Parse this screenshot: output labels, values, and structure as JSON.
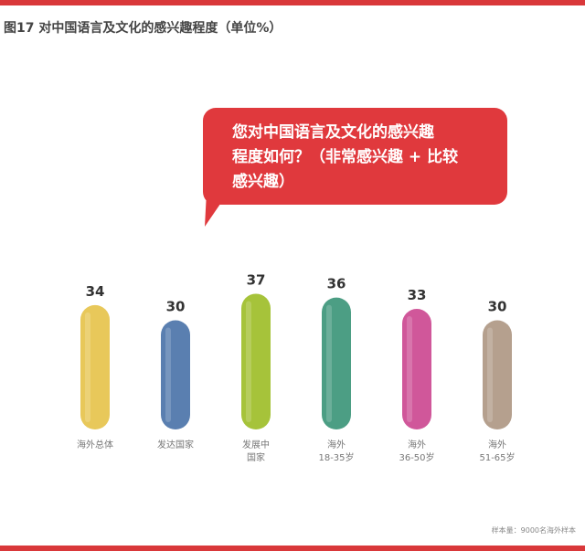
{
  "title": "图17  对中国语言及文化的感兴趣程度（单位%）",
  "bubble": {
    "lines": [
      "您对中国语言及文化的感兴趣",
      "程度如何？（非常感兴趣 + 比较",
      "感兴趣）"
    ]
  },
  "note": "样本量：9000名海外样本",
  "chart_data": {
    "type": "bar",
    "categories": [
      "海外总体",
      "发达国家",
      "发展中国家",
      "海外18-35岁",
      "海外36-50岁",
      "海外51-65岁"
    ],
    "category_lines": [
      [
        "海外总体"
      ],
      [
        "发达国家"
      ],
      [
        "发展中",
        "国家"
      ],
      [
        "海外",
        "18-35岁"
      ],
      [
        "海外",
        "36-50岁"
      ],
      [
        "海外",
        "51-65岁"
      ]
    ],
    "values": [
      34,
      30,
      37,
      36,
      33,
      30
    ],
    "value_labels": [
      "34",
      "30",
      "37",
      "36",
      "33",
      "30"
    ],
    "colors": [
      "#e8c85a",
      "#5a7fb0",
      "#a6c33a",
      "#4c9e84",
      "#d0579a",
      "#b5a08e"
    ],
    "title": "",
    "xlabel": "",
    "ylabel": "",
    "grid": false
  }
}
